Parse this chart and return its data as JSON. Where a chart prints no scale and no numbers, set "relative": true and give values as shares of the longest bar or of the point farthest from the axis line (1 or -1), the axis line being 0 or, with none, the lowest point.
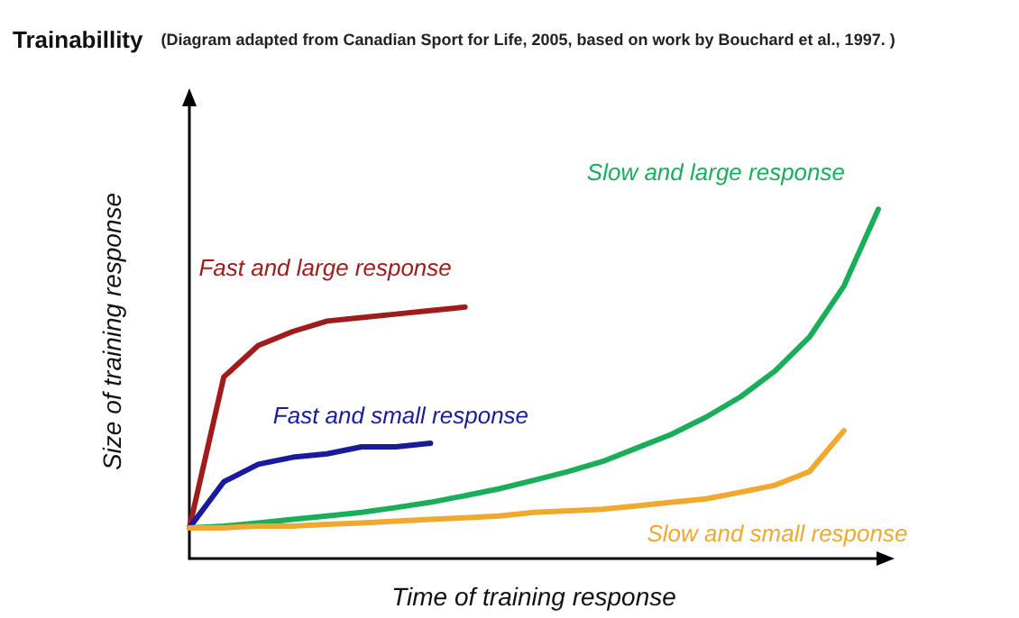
{
  "chart_data": {
    "type": "line",
    "title": "Trainabillity",
    "subtitle": "(Diagram adapted from Canadian Sport for Life, 2005, based on work by Bouchard et al., 1997. )",
    "xlabel": "Time of training response",
    "ylabel": "Size of training response",
    "relative": true,
    "legend": false,
    "grid": false,
    "marker": "none",
    "line_style": "solid",
    "categories": [
      null,
      null,
      null,
      null,
      null,
      null,
      null,
      null,
      null,
      null,
      null,
      null,
      null,
      null,
      null,
      null,
      null,
      null,
      null,
      null,
      null
    ],
    "series": [
      {
        "name": "Fast and large response",
        "color": "#a01c1c",
        "values": [
          0.088,
          0.52,
          0.61,
          0.65,
          0.68,
          0.69,
          0.7,
          0.71,
          0.72,
          null,
          null,
          null,
          null,
          null,
          null,
          null,
          null,
          null,
          null,
          null,
          null
        ]
      },
      {
        "name": "Fast and small response",
        "color": "#1a1a9c",
        "values": [
          0.088,
          0.22,
          0.27,
          0.29,
          0.3,
          0.32,
          0.32,
          0.33,
          null,
          null,
          null,
          null,
          null,
          null,
          null,
          null,
          null,
          null,
          null,
          null,
          null
        ]
      },
      {
        "name": "Slow and large response",
        "color": "#1aae5a",
        "values": [
          0.088,
          0.093,
          0.102,
          0.112,
          0.122,
          0.132,
          0.146,
          0.161,
          0.18,
          0.2,
          0.224,
          0.249,
          0.278,
          0.317,
          0.356,
          0.405,
          0.463,
          0.537,
          0.634,
          0.78,
          1.0
        ]
      },
      {
        "name": "Slow and small response",
        "color": "#f0a830",
        "values": [
          0.088,
          0.088,
          0.093,
          0.093,
          0.098,
          0.102,
          0.107,
          0.112,
          0.117,
          0.122,
          0.132,
          0.137,
          0.141,
          0.151,
          0.161,
          0.171,
          0.19,
          0.21,
          0.249,
          0.366,
          null
        ]
      }
    ]
  }
}
